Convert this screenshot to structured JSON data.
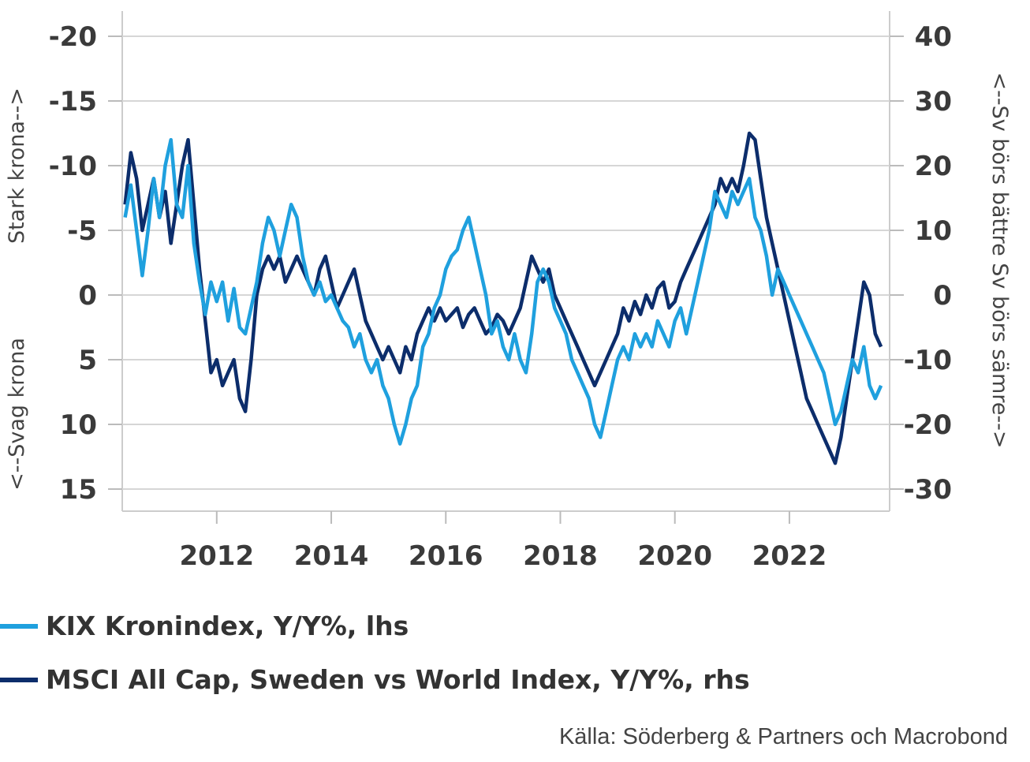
{
  "chart_data": {
    "type": "line",
    "left_axis": {
      "ticks": [
        "-20",
        "-15",
        "-10",
        "-5",
        "0",
        "5",
        "10",
        "15"
      ],
      "ylim": [
        15,
        -20
      ],
      "inverted": true
    },
    "right_axis": {
      "ticks": [
        "40",
        "30",
        "20",
        "10",
        "0",
        "-10",
        "-20",
        "-30"
      ],
      "ylim": [
        -30,
        40
      ]
    },
    "x_ticks": [
      "2012",
      "2014",
      "2016",
      "2018",
      "2020",
      "2022"
    ],
    "xlim": [
      2010.35,
      2023.75
    ],
    "left_upper_label": "Stark krona-->",
    "left_lower_label": "<--Svag krona",
    "right_label": "<--Sv börs bättre Sv börs sämre-->",
    "grid": true,
    "series": [
      {
        "name": "KIX Kronindex, Y/Y%, lhs",
        "axis": "left",
        "color": "#1fa0de",
        "points": [
          [
            2010.4,
            -6
          ],
          [
            2010.5,
            -8.5
          ],
          [
            2010.6,
            -5
          ],
          [
            2010.7,
            -1.5
          ],
          [
            2010.8,
            -5
          ],
          [
            2010.9,
            -9
          ],
          [
            2011.0,
            -6
          ],
          [
            2011.1,
            -10
          ],
          [
            2011.2,
            -12
          ],
          [
            2011.3,
            -7
          ],
          [
            2011.4,
            -6
          ],
          [
            2011.5,
            -10
          ],
          [
            2011.6,
            -4
          ],
          [
            2011.7,
            -1
          ],
          [
            2011.8,
            1.5
          ],
          [
            2011.9,
            -1
          ],
          [
            2012.0,
            0.5
          ],
          [
            2012.1,
            -1
          ],
          [
            2012.2,
            2
          ],
          [
            2012.3,
            -0.5
          ],
          [
            2012.4,
            2.5
          ],
          [
            2012.5,
            3
          ],
          [
            2012.6,
            1
          ],
          [
            2012.7,
            -1
          ],
          [
            2012.8,
            -4
          ],
          [
            2012.9,
            -6
          ],
          [
            2013.0,
            -5
          ],
          [
            2013.1,
            -3
          ],
          [
            2013.2,
            -5
          ],
          [
            2013.3,
            -7
          ],
          [
            2013.4,
            -6
          ],
          [
            2013.5,
            -3
          ],
          [
            2013.6,
            -1
          ],
          [
            2013.7,
            0
          ],
          [
            2013.8,
            -1
          ],
          [
            2013.9,
            0.5
          ],
          [
            2014.0,
            0
          ],
          [
            2014.1,
            1
          ],
          [
            2014.2,
            2
          ],
          [
            2014.3,
            2.5
          ],
          [
            2014.4,
            4
          ],
          [
            2014.5,
            3
          ],
          [
            2014.6,
            5
          ],
          [
            2014.7,
            6
          ],
          [
            2014.8,
            5
          ],
          [
            2014.9,
            7
          ],
          [
            2015.0,
            8
          ],
          [
            2015.1,
            10
          ],
          [
            2015.2,
            11.5
          ],
          [
            2015.3,
            10
          ],
          [
            2015.4,
            8
          ],
          [
            2015.5,
            7
          ],
          [
            2015.6,
            4
          ],
          [
            2015.7,
            3
          ],
          [
            2015.8,
            1
          ],
          [
            2015.9,
            0
          ],
          [
            2016.0,
            -2
          ],
          [
            2016.1,
            -3
          ],
          [
            2016.2,
            -3.5
          ],
          [
            2016.3,
            -5
          ],
          [
            2016.4,
            -6
          ],
          [
            2016.5,
            -4
          ],
          [
            2016.6,
            -2
          ],
          [
            2016.7,
            0
          ],
          [
            2016.8,
            3
          ],
          [
            2016.9,
            2
          ],
          [
            2017.0,
            4
          ],
          [
            2017.1,
            5
          ],
          [
            2017.2,
            3
          ],
          [
            2017.3,
            5
          ],
          [
            2017.4,
            6
          ],
          [
            2017.5,
            3
          ],
          [
            2017.6,
            -1
          ],
          [
            2017.7,
            -2
          ],
          [
            2017.8,
            -1
          ],
          [
            2017.9,
            1
          ],
          [
            2018.0,
            2
          ],
          [
            2018.1,
            3
          ],
          [
            2018.2,
            5
          ],
          [
            2018.3,
            6
          ],
          [
            2018.4,
            7
          ],
          [
            2018.5,
            8
          ],
          [
            2018.6,
            10
          ],
          [
            2018.7,
            11
          ],
          [
            2018.8,
            9
          ],
          [
            2018.9,
            7
          ],
          [
            2019.0,
            5
          ],
          [
            2019.1,
            4
          ],
          [
            2019.2,
            5
          ],
          [
            2019.3,
            3
          ],
          [
            2019.4,
            4
          ],
          [
            2019.5,
            3
          ],
          [
            2019.6,
            4
          ],
          [
            2019.7,
            2
          ],
          [
            2019.8,
            3
          ],
          [
            2019.9,
            4
          ],
          [
            2020.0,
            2
          ],
          [
            2020.1,
            1
          ],
          [
            2020.2,
            3
          ],
          [
            2020.3,
            1
          ],
          [
            2020.4,
            -1
          ],
          [
            2020.5,
            -3
          ],
          [
            2020.6,
            -5
          ],
          [
            2020.7,
            -8
          ],
          [
            2020.8,
            -7
          ],
          [
            2020.9,
            -6
          ],
          [
            2021.0,
            -8
          ],
          [
            2021.1,
            -7
          ],
          [
            2021.2,
            -8
          ],
          [
            2021.3,
            -9
          ],
          [
            2021.4,
            -6
          ],
          [
            2021.5,
            -5
          ],
          [
            2021.6,
            -3
          ],
          [
            2021.7,
            0
          ],
          [
            2021.8,
            -2
          ],
          [
            2021.9,
            -1
          ],
          [
            2022.0,
            0
          ],
          [
            2022.1,
            1
          ],
          [
            2022.2,
            2
          ],
          [
            2022.3,
            3
          ],
          [
            2022.4,
            4
          ],
          [
            2022.5,
            5
          ],
          [
            2022.6,
            6
          ],
          [
            2022.7,
            8
          ],
          [
            2022.8,
            10
          ],
          [
            2022.9,
            9
          ],
          [
            2023.0,
            7
          ],
          [
            2023.1,
            5
          ],
          [
            2023.2,
            6
          ],
          [
            2023.3,
            4
          ],
          [
            2023.4,
            7
          ],
          [
            2023.5,
            8
          ],
          [
            2023.6,
            7
          ]
        ]
      },
      {
        "name": "MSCI All Cap, Sweden vs World Index, Y/Y%, rhs",
        "axis": "right",
        "color": "#0c2d6b",
        "points": [
          [
            2010.4,
            14
          ],
          [
            2010.5,
            22
          ],
          [
            2010.6,
            18
          ],
          [
            2010.7,
            10
          ],
          [
            2010.8,
            14
          ],
          [
            2010.9,
            18
          ],
          [
            2011.0,
            12
          ],
          [
            2011.1,
            16
          ],
          [
            2011.2,
            8
          ],
          [
            2011.3,
            14
          ],
          [
            2011.4,
            20
          ],
          [
            2011.5,
            24
          ],
          [
            2011.6,
            14
          ],
          [
            2011.7,
            4
          ],
          [
            2011.8,
            -4
          ],
          [
            2011.9,
            -12
          ],
          [
            2012.0,
            -10
          ],
          [
            2012.1,
            -14
          ],
          [
            2012.2,
            -12
          ],
          [
            2012.3,
            -10
          ],
          [
            2012.4,
            -16
          ],
          [
            2012.5,
            -18
          ],
          [
            2012.6,
            -10
          ],
          [
            2012.7,
            0
          ],
          [
            2012.8,
            4
          ],
          [
            2012.9,
            6
          ],
          [
            2013.0,
            4
          ],
          [
            2013.1,
            6
          ],
          [
            2013.2,
            2
          ],
          [
            2013.3,
            4
          ],
          [
            2013.4,
            6
          ],
          [
            2013.5,
            4
          ],
          [
            2013.6,
            2
          ],
          [
            2013.7,
            0
          ],
          [
            2013.8,
            4
          ],
          [
            2013.9,
            6
          ],
          [
            2014.0,
            2
          ],
          [
            2014.1,
            -2
          ],
          [
            2014.2,
            0
          ],
          [
            2014.3,
            2
          ],
          [
            2014.4,
            4
          ],
          [
            2014.5,
            0
          ],
          [
            2014.6,
            -4
          ],
          [
            2014.7,
            -6
          ],
          [
            2014.8,
            -8
          ],
          [
            2014.9,
            -10
          ],
          [
            2015.0,
            -8
          ],
          [
            2015.1,
            -10
          ],
          [
            2015.2,
            -12
          ],
          [
            2015.3,
            -8
          ],
          [
            2015.4,
            -10
          ],
          [
            2015.5,
            -6
          ],
          [
            2015.6,
            -4
          ],
          [
            2015.7,
            -2
          ],
          [
            2015.8,
            -4
          ],
          [
            2015.9,
            -2
          ],
          [
            2016.0,
            -4
          ],
          [
            2016.1,
            -3
          ],
          [
            2016.2,
            -2
          ],
          [
            2016.3,
            -5
          ],
          [
            2016.4,
            -3
          ],
          [
            2016.5,
            -2
          ],
          [
            2016.6,
            -4
          ],
          [
            2016.7,
            -6
          ],
          [
            2016.8,
            -5
          ],
          [
            2016.9,
            -3
          ],
          [
            2017.0,
            -4
          ],
          [
            2017.1,
            -6
          ],
          [
            2017.2,
            -4
          ],
          [
            2017.3,
            -2
          ],
          [
            2017.4,
            2
          ],
          [
            2017.5,
            6
          ],
          [
            2017.6,
            4
          ],
          [
            2017.7,
            2
          ],
          [
            2017.8,
            4
          ],
          [
            2017.9,
            0
          ],
          [
            2018.0,
            -2
          ],
          [
            2018.1,
            -4
          ],
          [
            2018.2,
            -6
          ],
          [
            2018.3,
            -8
          ],
          [
            2018.4,
            -10
          ],
          [
            2018.5,
            -12
          ],
          [
            2018.6,
            -14
          ],
          [
            2018.7,
            -12
          ],
          [
            2018.8,
            -10
          ],
          [
            2018.9,
            -8
          ],
          [
            2019.0,
            -6
          ],
          [
            2019.1,
            -2
          ],
          [
            2019.2,
            -4
          ],
          [
            2019.3,
            -1
          ],
          [
            2019.4,
            -3
          ],
          [
            2019.5,
            0
          ],
          [
            2019.6,
            -2
          ],
          [
            2019.7,
            1
          ],
          [
            2019.8,
            2
          ],
          [
            2019.9,
            -2
          ],
          [
            2020.0,
            -1
          ],
          [
            2020.1,
            2
          ],
          [
            2020.2,
            4
          ],
          [
            2020.3,
            6
          ],
          [
            2020.4,
            8
          ],
          [
            2020.5,
            10
          ],
          [
            2020.6,
            12
          ],
          [
            2020.7,
            14
          ],
          [
            2020.8,
            18
          ],
          [
            2020.9,
            16
          ],
          [
            2021.0,
            18
          ],
          [
            2021.1,
            16
          ],
          [
            2021.2,
            20
          ],
          [
            2021.3,
            25
          ],
          [
            2021.4,
            24
          ],
          [
            2021.5,
            18
          ],
          [
            2021.6,
            12
          ],
          [
            2021.7,
            8
          ],
          [
            2021.8,
            4
          ],
          [
            2021.9,
            0
          ],
          [
            2022.0,
            -4
          ],
          [
            2022.1,
            -8
          ],
          [
            2022.2,
            -12
          ],
          [
            2022.3,
            -16
          ],
          [
            2022.4,
            -18
          ],
          [
            2022.5,
            -20
          ],
          [
            2022.6,
            -22
          ],
          [
            2022.7,
            -24
          ],
          [
            2022.8,
            -26
          ],
          [
            2022.9,
            -22
          ],
          [
            2023.0,
            -16
          ],
          [
            2023.1,
            -10
          ],
          [
            2023.2,
            -4
          ],
          [
            2023.3,
            2
          ],
          [
            2023.4,
            0
          ],
          [
            2023.5,
            -6
          ],
          [
            2023.6,
            -8
          ]
        ]
      }
    ]
  },
  "source": "Källa: Söderberg & Partners och Macrobond"
}
